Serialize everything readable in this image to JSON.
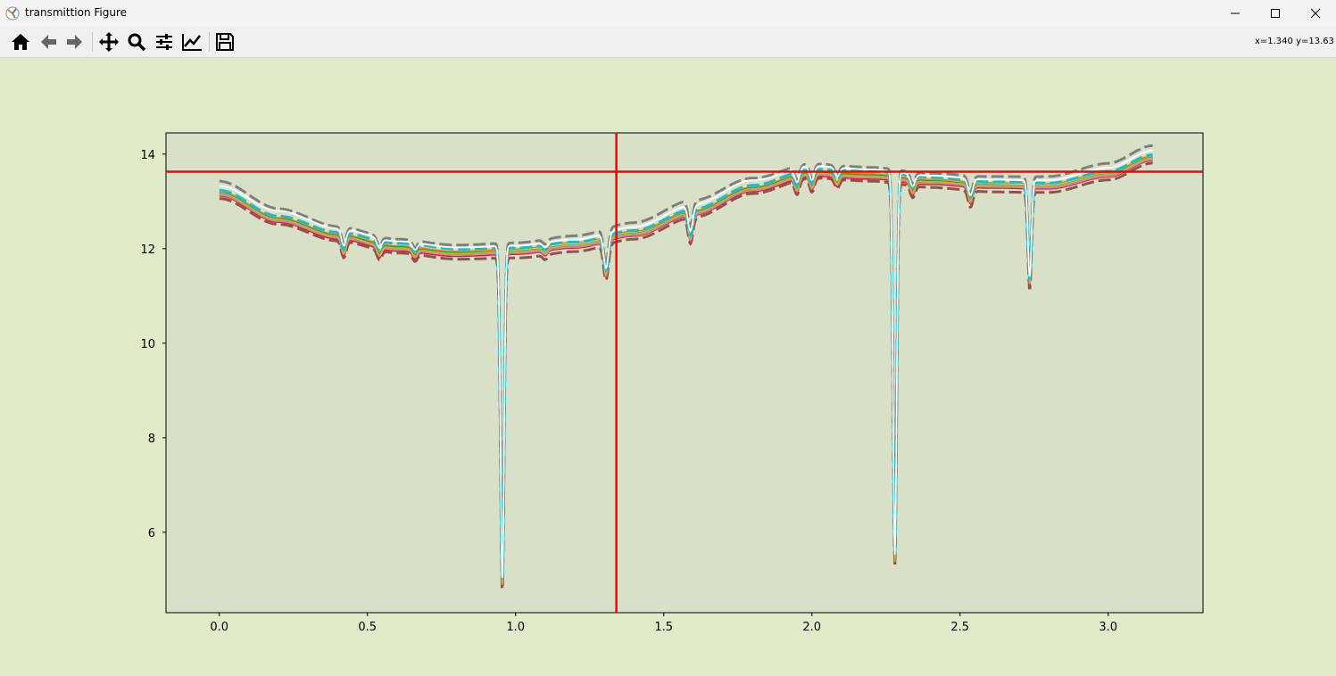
{
  "window": {
    "title": "transmittion Figure"
  },
  "toolbar": {
    "buttons": [
      {
        "name": "home-button",
        "icon": "home-icon"
      },
      {
        "name": "back-button",
        "icon": "arrow-left-icon"
      },
      {
        "name": "forward-button",
        "icon": "arrow-right-icon"
      },
      {
        "name": "pan-button",
        "icon": "move-icon"
      },
      {
        "name": "zoom-button",
        "icon": "magnifier-icon"
      },
      {
        "name": "subplots-button",
        "icon": "sliders-icon"
      },
      {
        "name": "edit-axes-button",
        "icon": "line-chart-icon"
      },
      {
        "name": "save-button",
        "icon": "floppy-disk-icon"
      }
    ],
    "coords": "x=1.340 y=13.63"
  },
  "chart_data": {
    "type": "line",
    "xlim": [
      -0.18,
      3.32
    ],
    "ylim": [
      4.3,
      14.45
    ],
    "xticks": [
      "0.0",
      "0.5",
      "1.0",
      "1.5",
      "2.0",
      "2.5",
      "3.0"
    ],
    "xtick_values": [
      0,
      0.5,
      1.0,
      1.5,
      2.0,
      2.5,
      3.0
    ],
    "yticks": [
      "6",
      "8",
      "10",
      "12",
      "14"
    ],
    "ytick_values": [
      6,
      8,
      10,
      12,
      14
    ],
    "grid": false,
    "crosshair": {
      "x": 1.34,
      "y": 13.63,
      "color": "#ff0000"
    },
    "series_x": [
      0.0,
      0.2,
      0.4,
      0.6,
      0.8,
      1.0,
      1.2,
      1.4,
      1.6,
      1.8,
      2.0,
      2.2,
      2.4,
      2.6,
      2.8,
      3.0,
      3.15
    ],
    "baseline_y": [
      13.15,
      12.6,
      12.25,
      12.0,
      11.88,
      11.92,
      12.05,
      12.3,
      12.75,
      13.25,
      13.58,
      13.52,
      13.4,
      13.32,
      13.3,
      13.55,
      13.9
    ],
    "dips": [
      {
        "x": 0.42,
        "depth": 0.35
      },
      {
        "x": 0.54,
        "depth": 0.2
      },
      {
        "x": 0.66,
        "depth": 0.15
      },
      {
        "x": 0.955,
        "depth": 7.1
      },
      {
        "x": 1.1,
        "depth": 0.1
      },
      {
        "x": 1.305,
        "depth": 0.75
      },
      {
        "x": 1.59,
        "depth": 0.55
      },
      {
        "x": 1.95,
        "depth": 0.3
      },
      {
        "x": 2.0,
        "depth": 0.3
      },
      {
        "x": 2.085,
        "depth": 0.2
      },
      {
        "x": 2.28,
        "depth": 8.1
      },
      {
        "x": 2.34,
        "depth": 0.25
      },
      {
        "x": 2.535,
        "depth": 0.35
      },
      {
        "x": 2.735,
        "depth": 2.05
      }
    ],
    "series": [
      {
        "color": "#7f7f7f",
        "offset": 0.28,
        "dashed": true
      },
      {
        "color": "#8c564b",
        "offset": -0.12,
        "dashed": true
      },
      {
        "color": "#d62728",
        "offset": -0.05,
        "dashed": false
      },
      {
        "color": "#9467bd",
        "offset": 0.0,
        "dashed": false
      },
      {
        "color": "#ff7f0e",
        "offset": 0.08,
        "dashed": false
      },
      {
        "color": "#2ca02c",
        "offset": 0.04,
        "dashed": false
      },
      {
        "color": "#e377c2",
        "offset": -0.02,
        "dashed": false
      },
      {
        "color": "#bcbd22",
        "offset": 0.02,
        "dashed": false
      },
      {
        "color": "#17becf",
        "offset": 0.12,
        "dashed": true
      },
      {
        "color": "#ffffff",
        "offset": 0.2,
        "dashed": false
      }
    ]
  }
}
